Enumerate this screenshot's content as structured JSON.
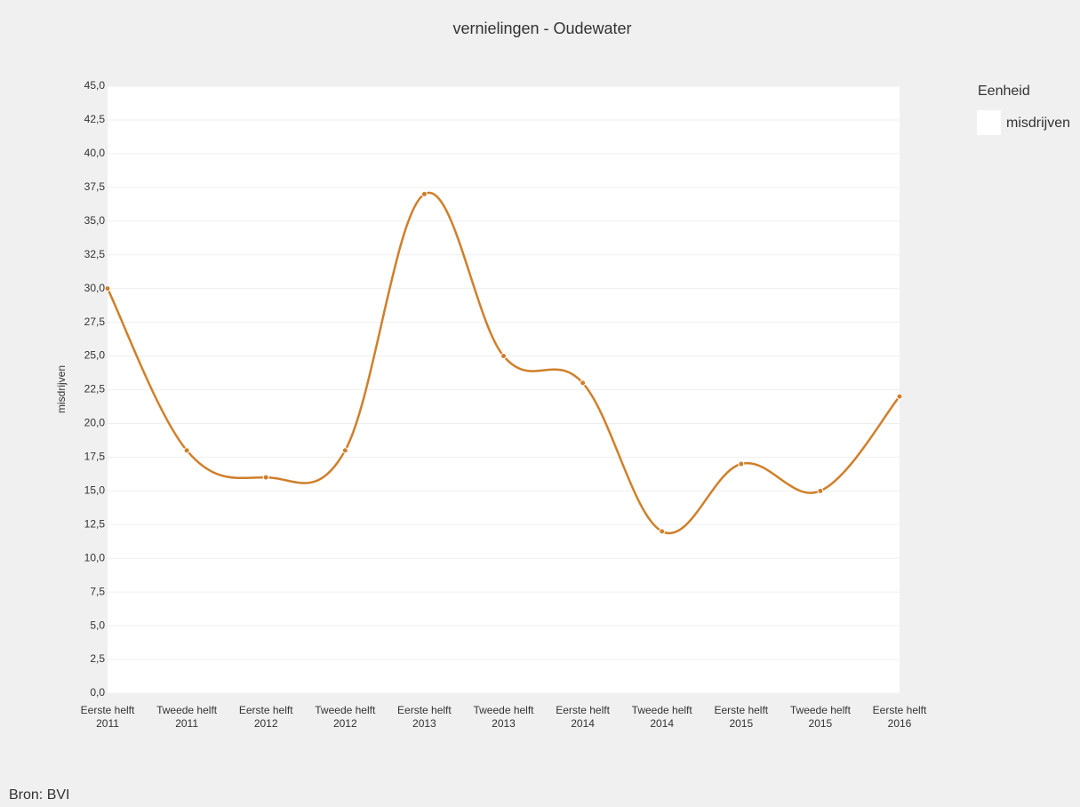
{
  "chart_data": {
    "type": "line",
    "title": "vernielingen - Oudewater",
    "y_label": "misdrijven",
    "legend_title": "Eenheid",
    "source": "Bron: BVI",
    "categories": [
      "Eerste helft 2011",
      "Tweede helft 2011",
      "Eerste helft 2012",
      "Tweede helft 2012",
      "Eerste helft 2013",
      "Tweede helft 2013",
      "Eerste helft 2014",
      "Tweede helft 2014",
      "Eerste helft 2015",
      "Tweede helft 2015",
      "Eerste helft 2016"
    ],
    "series": [
      {
        "name": "misdrijven",
        "color": "#d07f2a",
        "values": [
          30,
          18,
          16,
          18,
          37,
          25,
          23,
          12,
          17,
          15,
          22
        ]
      }
    ],
    "ylim": [
      0,
      45
    ],
    "yticks": [
      {
        "value": 0,
        "label": "0,0"
      },
      {
        "value": 2.5,
        "label": "2,5"
      },
      {
        "value": 5,
        "label": "5,0"
      },
      {
        "value": 7.5,
        "label": "7,5"
      },
      {
        "value": 10,
        "label": "10,0"
      },
      {
        "value": 12.5,
        "label": "12,5"
      },
      {
        "value": 15,
        "label": "15,0"
      },
      {
        "value": 17.5,
        "label": "17,5"
      },
      {
        "value": 20,
        "label": "20,0"
      },
      {
        "value": 22.5,
        "label": "22,5"
      },
      {
        "value": 25,
        "label": "25,0"
      },
      {
        "value": 27.5,
        "label": "27,5"
      },
      {
        "value": 30,
        "label": "30,0"
      },
      {
        "value": 32.5,
        "label": "32,5"
      },
      {
        "value": 35,
        "label": "35,0"
      },
      {
        "value": 37.5,
        "label": "37,5"
      },
      {
        "value": 40,
        "label": "40,0"
      },
      {
        "value": 42.5,
        "label": "42,5"
      },
      {
        "value": 45,
        "label": "45,0"
      }
    ],
    "grid": true
  }
}
